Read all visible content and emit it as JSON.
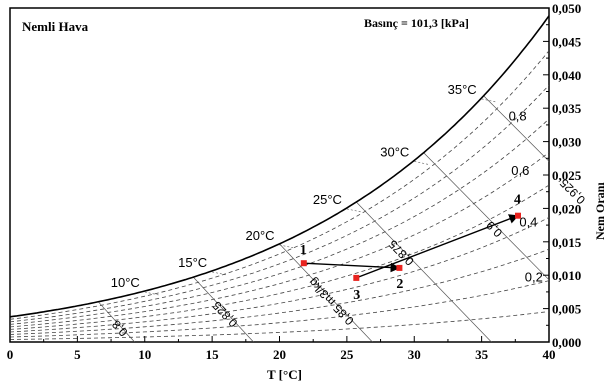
{
  "chart_data": {
    "type": "line",
    "title": "Nemli Hava",
    "pressure_label": "Basınç = 101,3 [kPa]",
    "xlabel": "T [°C]",
    "ylabel": "Nem Oranı",
    "xlim": [
      0,
      40
    ],
    "ylim": [
      0,
      0.05
    ],
    "x_ticks": [
      "0",
      "5",
      "10",
      "15",
      "20",
      "25",
      "30",
      "35",
      "40"
    ],
    "y_ticks": [
      "0,000",
      "0,005",
      "0,010",
      "0,015",
      "0,020",
      "0,025",
      "0,030",
      "0,035",
      "0,040",
      "0,045",
      "0,050"
    ],
    "saturation_curve": {
      "x": [
        0,
        5,
        10,
        15,
        20,
        25,
        30,
        35,
        40
      ],
      "y": [
        0.0038,
        0.0054,
        0.0076,
        0.0106,
        0.0147,
        0.0201,
        0.0273,
        0.0367,
        0.0489
      ]
    },
    "temperature_labels": [
      {
        "text": "10°C",
        "t": 10
      },
      {
        "text": "15°C",
        "t": 15
      },
      {
        "text": "20°C",
        "t": 20
      },
      {
        "text": "25°C",
        "t": 25
      },
      {
        "text": "30°C",
        "t": 30
      },
      {
        "text": "35°C",
        "t": 35
      }
    ],
    "relative_humidity_lines": [
      {
        "phi": 0.2,
        "label": "0,2"
      },
      {
        "phi": 0.4,
        "label": "0,4"
      },
      {
        "phi": 0.6,
        "label": "0,6"
      },
      {
        "phi": 0.8,
        "label": "0,8"
      }
    ],
    "specific_volume_lines": [
      {
        "v": 0.8,
        "label": "0,8"
      },
      {
        "v": 0.825,
        "label": "0,825"
      },
      {
        "v": 0.85,
        "label": "0,85 m3/kg"
      },
      {
        "v": 0.875,
        "label": "0,875"
      },
      {
        "v": 0.9,
        "label": "0,9"
      },
      {
        "v": 0.925,
        "label": "0,925"
      }
    ],
    "points": [
      {
        "label": "1",
        "x": 21.8,
        "y": 0.0118
      },
      {
        "label": "2",
        "x": 28.9,
        "y": 0.0111
      },
      {
        "label": "3",
        "x": 25.7,
        "y": 0.0096
      },
      {
        "label": "4",
        "x": 37.7,
        "y": 0.0189
      }
    ],
    "process_lines": [
      {
        "from": "1",
        "to": "2"
      },
      {
        "from": "3",
        "to": "4"
      }
    ],
    "colors": {
      "point": "#e8231f",
      "saturation": "#000000",
      "rh_lines": "#444444",
      "volume_lines": "#555555"
    }
  }
}
